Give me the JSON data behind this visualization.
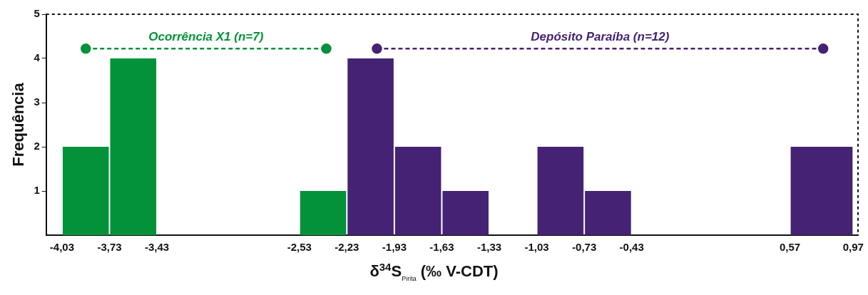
{
  "chart_data": {
    "type": "histogram",
    "xlabel": "δ$^{34}$S$_{Pirita}$ (‰ V-CDT)",
    "ylabel": "Frequência",
    "bins": [
      -4.03,
      -3.73,
      -3.43,
      -2.53,
      -2.23,
      -1.93,
      -1.63,
      -1.33,
      -1.03,
      -0.73,
      -0.43,
      0.57,
      0.97
    ],
    "series": [
      {
        "color": "#03923a",
        "values": [
          2,
          4,
          0,
          1,
          0,
          0,
          0,
          0,
          0,
          0,
          0,
          0
        ]
      },
      {
        "color": "#452274",
        "values": [
          0,
          0,
          0,
          0,
          4,
          2,
          1,
          0,
          2,
          1,
          0,
          2
        ]
      },
      {
        "type": "line",
        "name": "Ocorrência X1 (n=7)",
        "color": "#03923a",
        "x": [
          -3.88,
          -2.36
        ],
        "values": [
          4.22,
          4.22
        ],
        "marker": "circle",
        "line_style": "dashed"
      },
      {
        "type": "line",
        "name": "Depósito Paraíba (n=12)",
        "color": "#452274",
        "x": [
          -2.04,
          0.78
        ],
        "values": [
          4.22,
          4.22
        ],
        "marker": "circle",
        "line_style": "dashed"
      }
    ],
    "xlim": [
      -4.13,
      1.0
    ],
    "ylim": [
      0,
      5
    ],
    "xticks": [
      {
        "value": -4.03,
        "label": "-4,03"
      },
      {
        "value": -3.73,
        "label": "-3,73"
      },
      {
        "value": -3.43,
        "label": "-3,43"
      },
      {
        "value": -2.53,
        "label": "-2,53"
      },
      {
        "value": -2.23,
        "label": "-2,23"
      },
      {
        "value": -1.93,
        "label": "-1,93"
      },
      {
        "value": -1.63,
        "label": "-1,63"
      },
      {
        "value": -1.33,
        "label": "-1,33"
      },
      {
        "value": -1.03,
        "label": "-1,03"
      },
      {
        "value": -0.73,
        "label": "-0,73"
      },
      {
        "value": -0.43,
        "label": "-0,43"
      },
      {
        "value": 0.57,
        "label": "0,57"
      },
      {
        "value": 0.97,
        "label": "0,97"
      }
    ],
    "yticks": [
      1,
      2,
      3,
      4,
      5
    ],
    "grid": false,
    "legend": false
  }
}
